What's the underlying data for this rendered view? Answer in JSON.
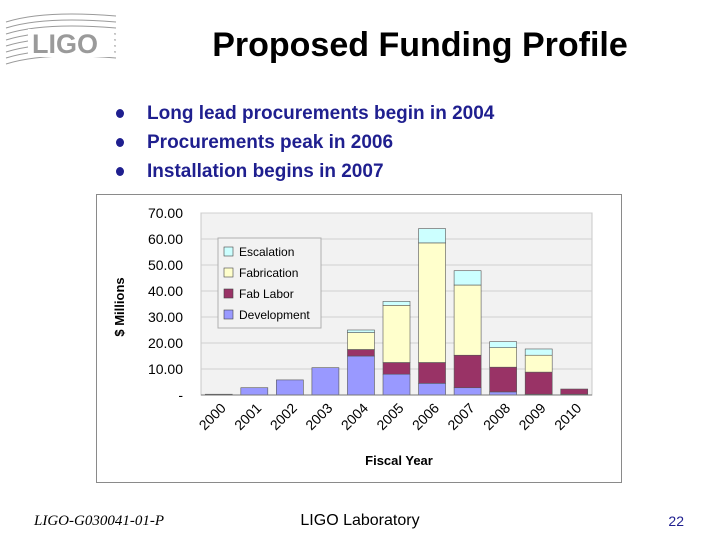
{
  "slide": {
    "logo_text": "LIGO",
    "title": "Proposed Funding Profile",
    "bullets": [
      "Long lead procurements begin in 2004",
      "Procurements peak in 2006",
      "Installation begins in 2007"
    ],
    "footer": {
      "doc_id": "LIGO-G030041-01-P",
      "org": "LIGO Laboratory",
      "page": "22"
    }
  },
  "colors": {
    "text_blue": "#1f1f8f",
    "logo_gray": "#9a9a9a"
  },
  "chart_data": {
    "type": "bar",
    "stacked": true,
    "title": "",
    "xlabel": "Fiscal Year",
    "ylabel": "$ Millions",
    "ylim": [
      0,
      70
    ],
    "y_ticks": [
      0,
      10,
      20,
      30,
      40,
      50,
      60,
      70
    ],
    "y_tick_labels": [
      "-",
      "10.00",
      "20.00",
      "30.00",
      "40.00",
      "50.00",
      "60.00",
      "70.00"
    ],
    "categories": [
      "2000",
      "2001",
      "2002",
      "2003",
      "2004",
      "2005",
      "2006",
      "2007",
      "2008",
      "2009",
      "2010"
    ],
    "legend_position": "top-left",
    "series": [
      {
        "name": "Development",
        "color": "#9999ff",
        "values": [
          0.3,
          2.8,
          5.8,
          10.5,
          15.0,
          8.0,
          4.5,
          2.8,
          1.2,
          0.3,
          0.3
        ]
      },
      {
        "name": "Fab Labor",
        "color": "#993366",
        "values": [
          0,
          0,
          0,
          0,
          2.5,
          4.5,
          8.0,
          12.5,
          9.5,
          8.5,
          2.0
        ]
      },
      {
        "name": "Fabrication",
        "color": "#ffffcc",
        "values": [
          0,
          0,
          0,
          0,
          6.5,
          22.0,
          46.0,
          27.0,
          7.5,
          6.5,
          0
        ]
      },
      {
        "name": "Escalation",
        "color": "#ccffff",
        "values": [
          0,
          0,
          0,
          0,
          1.0,
          1.5,
          5.5,
          5.5,
          2.3,
          2.4,
          0
        ]
      }
    ]
  }
}
